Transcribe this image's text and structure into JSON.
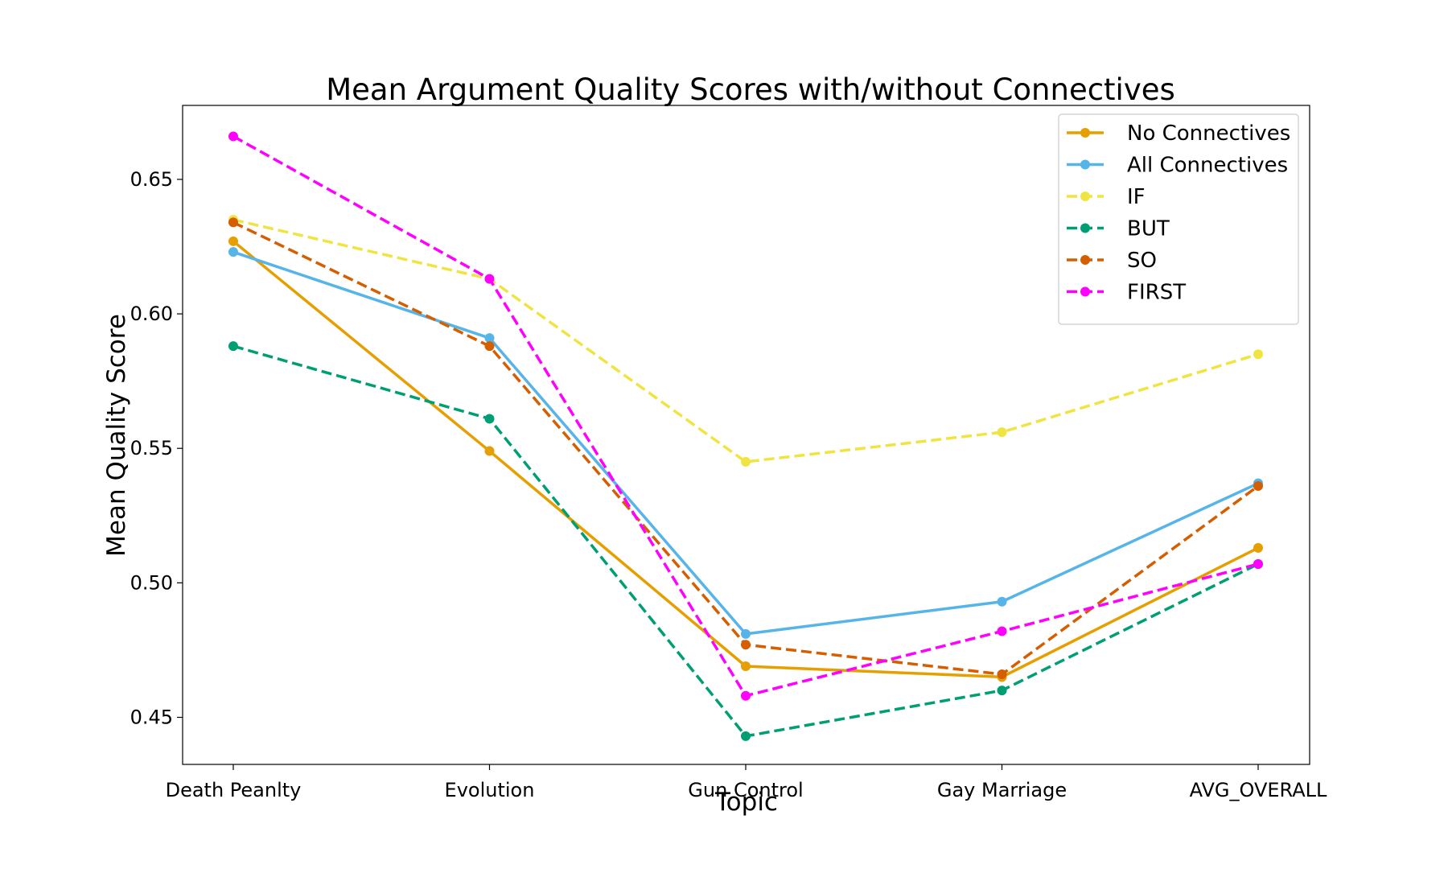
{
  "chart_data": {
    "type": "line",
    "title": "Mean Argument Quality Scores with/without Connectives",
    "xlabel": "Topic",
    "ylabel": "Mean Quality Score",
    "categories": [
      "Death Peanlty",
      "Evolution",
      "Gun Control",
      "Gay Marriage",
      "AVG_OVERALL"
    ],
    "ylim": [
      0.4325,
      0.6775
    ],
    "yticks": [
      0.45,
      0.5,
      0.55,
      0.6,
      0.65
    ],
    "ytick_labels": [
      "0.45",
      "0.50",
      "0.55",
      "0.60",
      "0.65"
    ],
    "grid": false,
    "legend_position": "top-right",
    "series": [
      {
        "name": "No Connectives",
        "color": "#E69F00",
        "style": "solid",
        "values": [
          0.627,
          0.549,
          0.469,
          0.465,
          0.513
        ]
      },
      {
        "name": "All Connectives",
        "color": "#56B4E9",
        "style": "solid",
        "values": [
          0.623,
          0.591,
          0.481,
          0.493,
          0.537
        ]
      },
      {
        "name": "IF",
        "color": "#F0E442",
        "style": "dashed",
        "values": [
          0.635,
          0.613,
          0.545,
          0.556,
          0.585
        ]
      },
      {
        "name": "BUT",
        "color": "#009E73",
        "style": "dashed",
        "values": [
          0.588,
          0.561,
          0.443,
          0.46,
          0.507
        ]
      },
      {
        "name": "SO",
        "color": "#D55E00",
        "style": "dashed",
        "values": [
          0.634,
          0.588,
          0.477,
          0.466,
          0.536
        ]
      },
      {
        "name": "FIRST",
        "color": "#FF00FF",
        "style": "dashed",
        "values": [
          0.666,
          0.613,
          0.458,
          0.482,
          0.507
        ]
      }
    ]
  }
}
